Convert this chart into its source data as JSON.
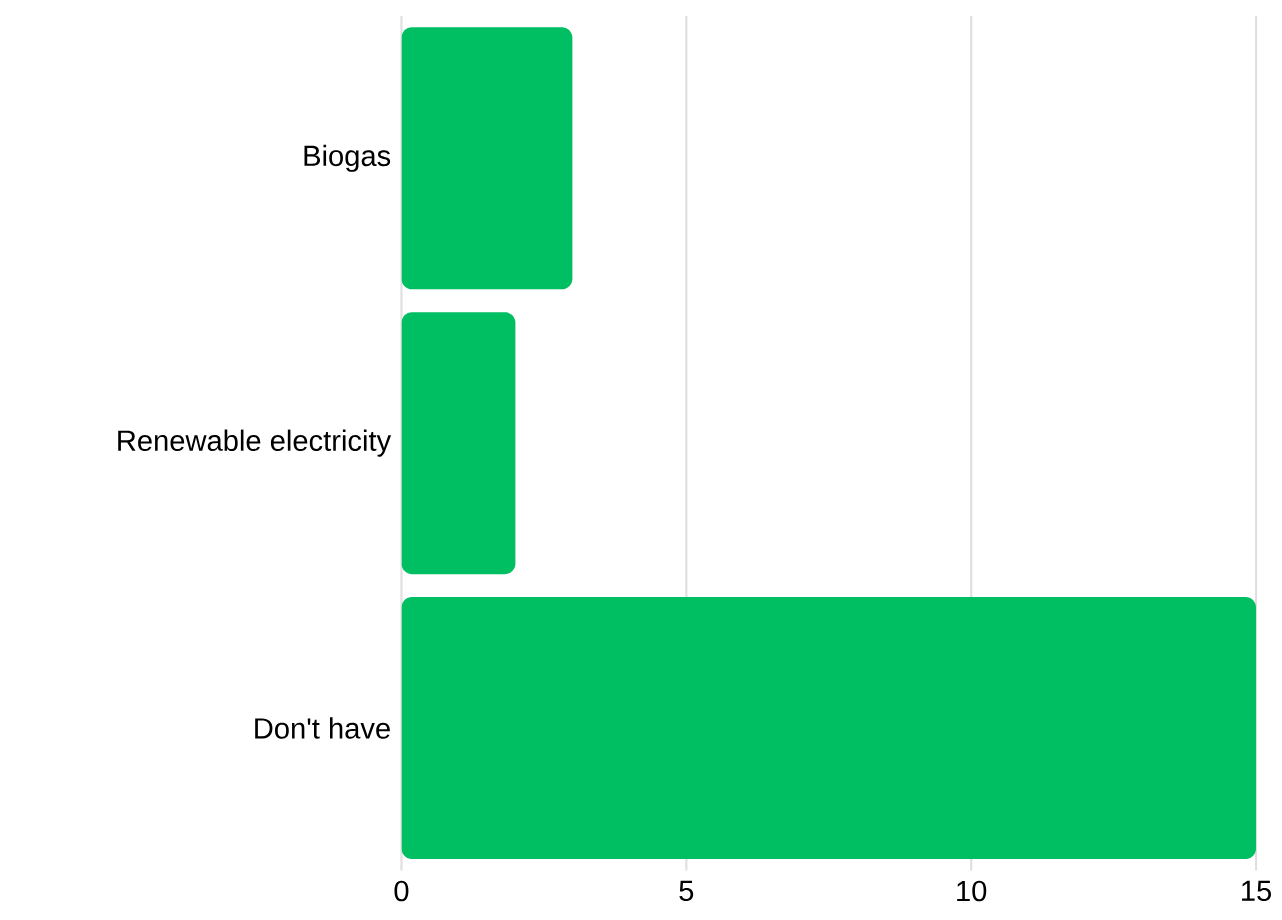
{
  "chart_data": {
    "type": "bar",
    "orientation": "horizontal",
    "categories": [
      "Biogas",
      "Renewable electricity",
      "Don't have"
    ],
    "values": [
      3,
      2,
      15
    ],
    "color": "#00bf63",
    "xlim": [
      0,
      15
    ],
    "xticks": [
      0,
      5,
      10,
      15
    ],
    "grid": "x"
  }
}
